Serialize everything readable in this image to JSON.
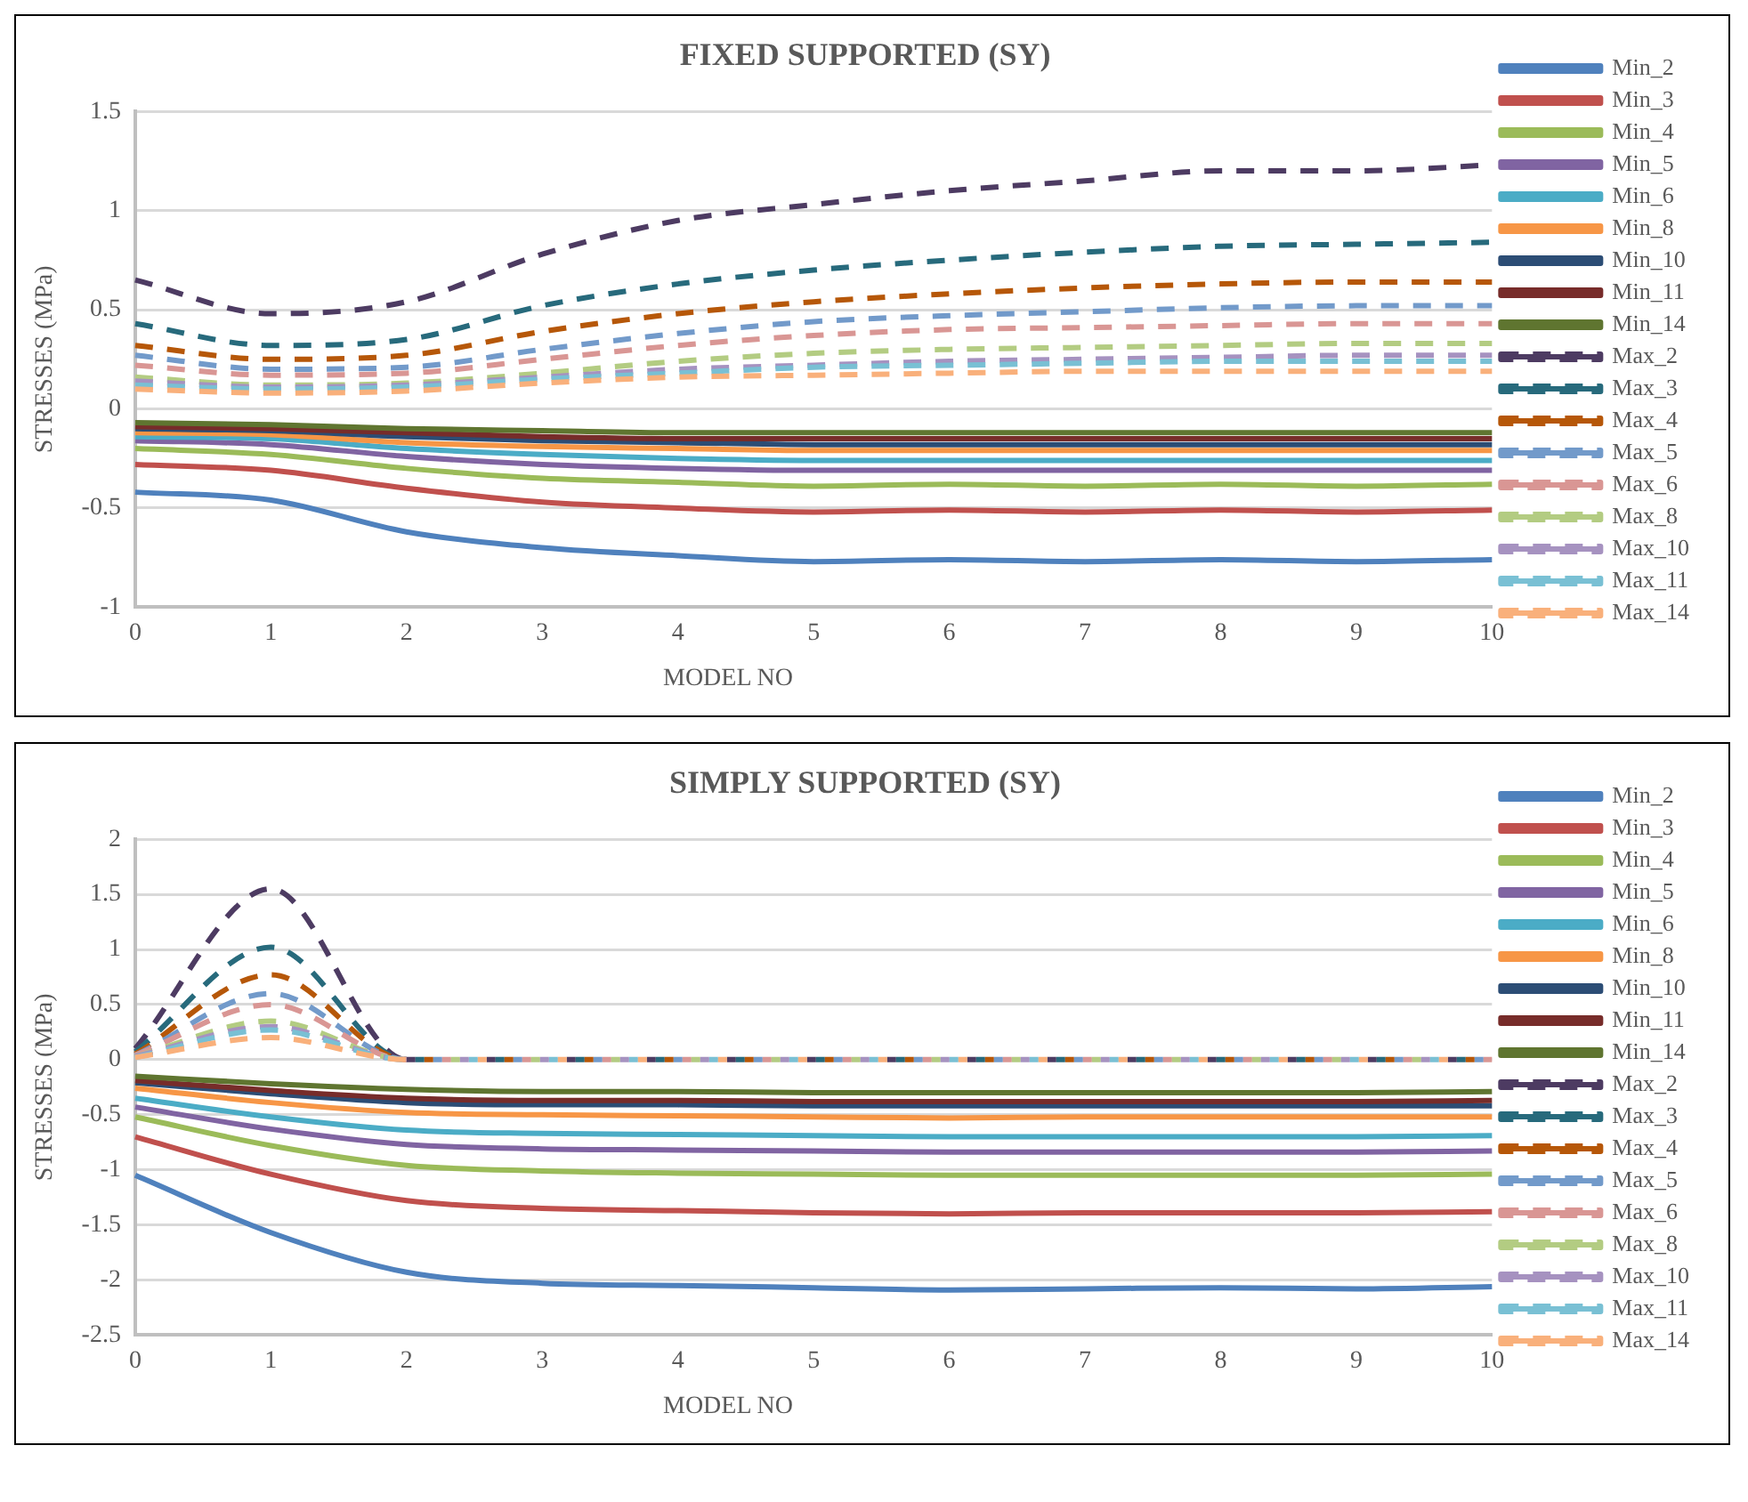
{
  "chart_data": [
    {
      "type": "line",
      "title": "FIXED SUPPORTED (SY)",
      "xlabel": "MODEL NO",
      "ylabel": "STRESSES (MPa)",
      "categories": [
        "0",
        "1",
        "2",
        "3",
        "4",
        "5",
        "6",
        "7",
        "8",
        "9",
        "10"
      ],
      "ylim": [
        -1,
        1.5
      ],
      "yticks": [
        -1,
        -0.5,
        0,
        0.5,
        1,
        1.5
      ],
      "grid": "y",
      "legend": "right",
      "marker": "none",
      "series": [
        {
          "name": "Min_2",
          "color": "#4f81bd",
          "line_style": "solid",
          "values": [
            -0.42,
            -0.46,
            -0.62,
            -0.7,
            -0.74,
            -0.77,
            -0.76,
            -0.77,
            -0.76,
            -0.77,
            -0.76
          ]
        },
        {
          "name": "Min_3",
          "color": "#c0504d",
          "line_style": "solid",
          "values": [
            -0.28,
            -0.31,
            -0.4,
            -0.47,
            -0.5,
            -0.52,
            -0.51,
            -0.52,
            -0.51,
            -0.52,
            -0.51
          ]
        },
        {
          "name": "Min_4",
          "color": "#9bbb59",
          "line_style": "solid",
          "values": [
            -0.2,
            -0.23,
            -0.3,
            -0.35,
            -0.37,
            -0.39,
            -0.38,
            -0.39,
            -0.38,
            -0.39,
            -0.38
          ]
        },
        {
          "name": "Min_5",
          "color": "#8064a2",
          "line_style": "solid",
          "values": [
            -0.16,
            -0.18,
            -0.24,
            -0.28,
            -0.3,
            -0.31,
            -0.31,
            -0.31,
            -0.31,
            -0.31,
            -0.31
          ]
        },
        {
          "name": "Min_6",
          "color": "#4bacc6",
          "line_style": "solid",
          "values": [
            -0.14,
            -0.15,
            -0.2,
            -0.23,
            -0.25,
            -0.26,
            -0.26,
            -0.26,
            -0.26,
            -0.26,
            -0.26
          ]
        },
        {
          "name": "Min_8",
          "color": "#f79646",
          "line_style": "solid",
          "values": [
            -0.12,
            -0.13,
            -0.17,
            -0.19,
            -0.2,
            -0.21,
            -0.21,
            -0.21,
            -0.21,
            -0.21,
            -0.21
          ]
        },
        {
          "name": "Min_10",
          "color": "#2c4d75",
          "line_style": "solid",
          "values": [
            -0.1,
            -0.11,
            -0.14,
            -0.16,
            -0.17,
            -0.18,
            -0.18,
            -0.18,
            -0.18,
            -0.18,
            -0.18
          ]
        },
        {
          "name": "Min_11",
          "color": "#772c2a",
          "line_style": "solid",
          "values": [
            -0.09,
            -0.1,
            -0.12,
            -0.14,
            -0.15,
            -0.15,
            -0.15,
            -0.15,
            -0.15,
            -0.15,
            -0.15
          ]
        },
        {
          "name": "Min_14",
          "color": "#5f7530",
          "line_style": "solid",
          "values": [
            -0.07,
            -0.08,
            -0.1,
            -0.11,
            -0.12,
            -0.12,
            -0.12,
            -0.12,
            -0.12,
            -0.12,
            -0.12
          ]
        },
        {
          "name": "Max_2",
          "color": "#4d3b62",
          "line_style": "dashed",
          "values": [
            0.65,
            0.48,
            0.54,
            0.78,
            0.95,
            1.03,
            1.1,
            1.15,
            1.2,
            1.2,
            1.23
          ]
        },
        {
          "name": "Max_3",
          "color": "#276a7c",
          "line_style": "dashed",
          "values": [
            0.43,
            0.32,
            0.35,
            0.52,
            0.63,
            0.7,
            0.75,
            0.79,
            0.82,
            0.83,
            0.84
          ]
        },
        {
          "name": "Max_4",
          "color": "#b65708",
          "line_style": "dashed",
          "values": [
            0.32,
            0.25,
            0.27,
            0.39,
            0.48,
            0.54,
            0.58,
            0.61,
            0.63,
            0.64,
            0.64
          ]
        },
        {
          "name": "Max_5",
          "color": "#729aca",
          "line_style": "dashed",
          "values": [
            0.27,
            0.2,
            0.21,
            0.3,
            0.38,
            0.44,
            0.47,
            0.49,
            0.51,
            0.52,
            0.52
          ]
        },
        {
          "name": "Max_6",
          "color": "#d99694",
          "line_style": "dashed",
          "values": [
            0.22,
            0.17,
            0.18,
            0.25,
            0.32,
            0.37,
            0.4,
            0.41,
            0.42,
            0.43,
            0.43
          ]
        },
        {
          "name": "Max_8",
          "color": "#b3cc82",
          "line_style": "dashed",
          "values": [
            0.16,
            0.12,
            0.13,
            0.18,
            0.24,
            0.28,
            0.3,
            0.31,
            0.32,
            0.33,
            0.33
          ]
        },
        {
          "name": "Max_10",
          "color": "#a692c0",
          "line_style": "dashed",
          "values": [
            0.14,
            0.11,
            0.12,
            0.16,
            0.2,
            0.22,
            0.24,
            0.25,
            0.26,
            0.27,
            0.27
          ]
        },
        {
          "name": "Max_11",
          "color": "#79c0d4",
          "line_style": "dashed",
          "values": [
            0.12,
            0.1,
            0.11,
            0.15,
            0.18,
            0.21,
            0.22,
            0.23,
            0.24,
            0.24,
            0.24
          ]
        },
        {
          "name": "Max_14",
          "color": "#f9b07b",
          "line_style": "dashed",
          "values": [
            0.1,
            0.08,
            0.09,
            0.13,
            0.16,
            0.17,
            0.18,
            0.19,
            0.19,
            0.19,
            0.19
          ]
        }
      ]
    },
    {
      "type": "line",
      "title": "SIMPLY SUPPORTED (SY)",
      "xlabel": "MODEL NO",
      "ylabel": "STRESSES (MPa)",
      "categories": [
        "0",
        "1",
        "2",
        "3",
        "4",
        "5",
        "6",
        "7",
        "8",
        "9",
        "10"
      ],
      "ylim": [
        -2.5,
        2
      ],
      "yticks": [
        -2.5,
        -2,
        -1.5,
        -1,
        -0.5,
        0,
        0.5,
        1,
        1.5,
        2
      ],
      "grid": "y",
      "legend": "right",
      "marker": "none",
      "series": [
        {
          "name": "Min_2",
          "color": "#4f81bd",
          "line_style": "solid",
          "values": [
            -1.05,
            -1.57,
            -1.93,
            -2.03,
            -2.05,
            -2.07,
            -2.09,
            -2.08,
            -2.07,
            -2.08,
            -2.06
          ]
        },
        {
          "name": "Min_3",
          "color": "#c0504d",
          "line_style": "solid",
          "values": [
            -0.7,
            -1.04,
            -1.28,
            -1.35,
            -1.37,
            -1.39,
            -1.4,
            -1.39,
            -1.39,
            -1.39,
            -1.38
          ]
        },
        {
          "name": "Min_4",
          "color": "#9bbb59",
          "line_style": "solid",
          "values": [
            -0.52,
            -0.78,
            -0.96,
            -1.01,
            -1.03,
            -1.04,
            -1.05,
            -1.05,
            -1.05,
            -1.05,
            -1.04
          ]
        },
        {
          "name": "Min_5",
          "color": "#8064a2",
          "line_style": "solid",
          "values": [
            -0.43,
            -0.63,
            -0.77,
            -0.81,
            -0.82,
            -0.83,
            -0.84,
            -0.84,
            -0.84,
            -0.84,
            -0.83
          ]
        },
        {
          "name": "Min_6",
          "color": "#4bacc6",
          "line_style": "solid",
          "values": [
            -0.35,
            -0.52,
            -0.64,
            -0.67,
            -0.68,
            -0.69,
            -0.7,
            -0.7,
            -0.7,
            -0.7,
            -0.69
          ]
        },
        {
          "name": "Min_8",
          "color": "#f79646",
          "line_style": "solid",
          "values": [
            -0.26,
            -0.39,
            -0.48,
            -0.5,
            -0.51,
            -0.52,
            -0.53,
            -0.52,
            -0.52,
            -0.52,
            -0.52
          ]
        },
        {
          "name": "Min_10",
          "color": "#2c4d75",
          "line_style": "solid",
          "values": [
            -0.21,
            -0.31,
            -0.39,
            -0.41,
            -0.41,
            -0.42,
            -0.42,
            -0.42,
            -0.42,
            -0.42,
            -0.42
          ]
        },
        {
          "name": "Min_11",
          "color": "#772c2a",
          "line_style": "solid",
          "values": [
            -0.19,
            -0.28,
            -0.35,
            -0.37,
            -0.37,
            -0.38,
            -0.38,
            -0.38,
            -0.38,
            -0.38,
            -0.37
          ]
        },
        {
          "name": "Min_14",
          "color": "#5f7530",
          "line_style": "solid",
          "values": [
            -0.15,
            -0.22,
            -0.27,
            -0.29,
            -0.29,
            -0.3,
            -0.3,
            -0.3,
            -0.3,
            -0.3,
            -0.29
          ]
        },
        {
          "name": "Max_2",
          "color": "#4d3b62",
          "line_style": "dashed",
          "values": [
            0.1,
            1.55,
            0,
            0,
            0,
            0,
            0,
            0,
            0,
            0,
            0
          ]
        },
        {
          "name": "Max_3",
          "color": "#276a7c",
          "line_style": "dashed",
          "values": [
            0.07,
            1.02,
            0,
            0,
            0,
            0,
            0,
            0,
            0,
            0,
            0
          ]
        },
        {
          "name": "Max_4",
          "color": "#b65708",
          "line_style": "dashed",
          "values": [
            0.05,
            0.77,
            0,
            0,
            0,
            0,
            0,
            0,
            0,
            0,
            0
          ]
        },
        {
          "name": "Max_5",
          "color": "#729aca",
          "line_style": "dashed",
          "values": [
            0.04,
            0.6,
            0,
            0,
            0,
            0,
            0,
            0,
            0,
            0,
            0
          ]
        },
        {
          "name": "Max_6",
          "color": "#d99694",
          "line_style": "dashed",
          "values": [
            0.04,
            0.5,
            0,
            0,
            0,
            0,
            0,
            0,
            0,
            0,
            0
          ]
        },
        {
          "name": "Max_8",
          "color": "#b3cc82",
          "line_style": "dashed",
          "values": [
            0.03,
            0.35,
            0,
            0,
            0,
            0,
            0,
            0,
            0,
            0,
            0
          ]
        },
        {
          "name": "Max_10",
          "color": "#a692c0",
          "line_style": "dashed",
          "values": [
            0.03,
            0.3,
            0,
            0,
            0,
            0,
            0,
            0,
            0,
            0,
            0
          ]
        },
        {
          "name": "Max_11",
          "color": "#79c0d4",
          "line_style": "dashed",
          "values": [
            0.02,
            0.27,
            0,
            0,
            0,
            0,
            0,
            0,
            0,
            0,
            0
          ]
        },
        {
          "name": "Max_14",
          "color": "#f9b07b",
          "line_style": "dashed",
          "values": [
            0.02,
            0.2,
            0,
            0,
            0,
            0,
            0,
            0,
            0,
            0,
            0
          ]
        }
      ]
    }
  ]
}
